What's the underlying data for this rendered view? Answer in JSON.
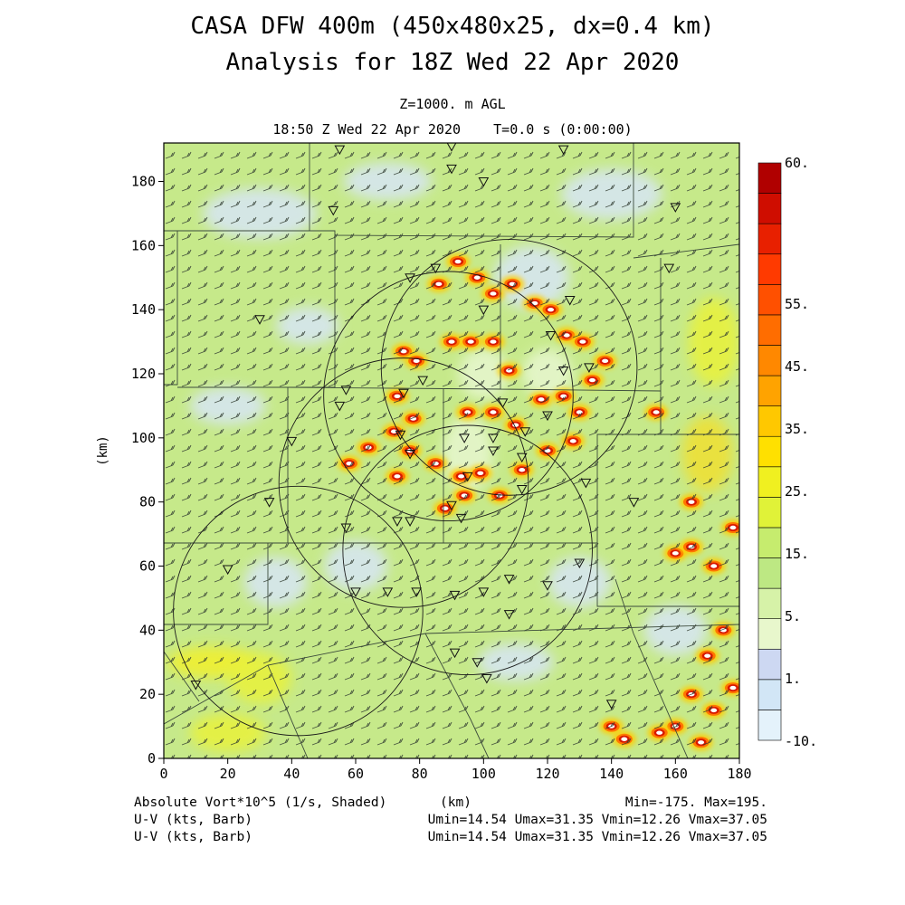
{
  "header": {
    "title_line1": "CASA DFW 400m (450x480x25, dx=0.4 km)",
    "title_line2": "Analysis for 18Z Wed 22 Apr 2020",
    "level": "Z=1000. m AGL",
    "time": "18:50 Z Wed 22 Apr 2020    T=0.0 s (0:00:00)"
  },
  "chart_data": {
    "type": "heatmap",
    "xlabel": "(km)",
    "ylabel": "(km)",
    "xlim": [
      0,
      180
    ],
    "ylim": [
      0,
      192
    ],
    "x_ticks": [
      0,
      20,
      40,
      60,
      80,
      100,
      120,
      140,
      160,
      180
    ],
    "y_ticks": [
      0,
      20,
      40,
      60,
      80,
      100,
      120,
      140,
      160,
      180
    ],
    "field": "Absolute Vort*10^5 (1/s, Shaded)",
    "min": -175,
    "max": 195,
    "colorbar": {
      "levels": [
        -10,
        1,
        5,
        15,
        25,
        35,
        45,
        55,
        60
      ],
      "labels": [
        "-10.",
        "1.",
        "5.",
        "15.",
        "25.",
        "35.",
        "45.",
        "55.",
        "60."
      ],
      "colors": [
        "#e4f2fb",
        "#d2e6f6",
        "#cdd8f2",
        "#e8f7cc",
        "#d6f2a8",
        "#bde883",
        "#c6ec6e",
        "#e0f238",
        "#f0f020",
        "#ffe000",
        "#ffc800",
        "#ffa300",
        "#ff8800",
        "#ff6d00",
        "#ff5000",
        "#ff3a00",
        "#e82000",
        "#cf0d00",
        "#b00000"
      ]
    },
    "radar_rings": [
      {
        "center": [
          89,
          113
        ],
        "radius_km": 39
      },
      {
        "center": [
          108,
          122
        ],
        "radius_km": 40
      },
      {
        "center": [
          75,
          86
        ],
        "radius_km": 39
      },
      {
        "center": [
          42,
          46
        ],
        "radius_km": 39
      },
      {
        "center": [
          95,
          65
        ],
        "radius_km": 39
      }
    ],
    "stations": [
      [
        55,
        190
      ],
      [
        90,
        191
      ],
      [
        125,
        190
      ],
      [
        90,
        184
      ],
      [
        100,
        180
      ],
      [
        53,
        171
      ],
      [
        77,
        150
      ],
      [
        30,
        137
      ],
      [
        85,
        153
      ],
      [
        100,
        140
      ],
      [
        121,
        132
      ],
      [
        127,
        143
      ],
      [
        125,
        121
      ],
      [
        133,
        122
      ],
      [
        81,
        118
      ],
      [
        75,
        114
      ],
      [
        74,
        101
      ],
      [
        77,
        95
      ],
      [
        57,
        115
      ],
      [
        55,
        110
      ],
      [
        40,
        99
      ],
      [
        94,
        100
      ],
      [
        103,
        100
      ],
      [
        106,
        111
      ],
      [
        103,
        96
      ],
      [
        112,
        94
      ],
      [
        113,
        102
      ],
      [
        120,
        107
      ],
      [
        95,
        88
      ],
      [
        112,
        84
      ],
      [
        132,
        86
      ],
      [
        90,
        79
      ],
      [
        93,
        75
      ],
      [
        77,
        74
      ],
      [
        73,
        74
      ],
      [
        57,
        72
      ],
      [
        33,
        80
      ],
      [
        20,
        59
      ],
      [
        60,
        52
      ],
      [
        70,
        52
      ],
      [
        79,
        52
      ],
      [
        91,
        51
      ],
      [
        100,
        52
      ],
      [
        108,
        56
      ],
      [
        120,
        54
      ],
      [
        130,
        61
      ],
      [
        147,
        80
      ],
      [
        91,
        33
      ],
      [
        101,
        25
      ],
      [
        140,
        17
      ],
      [
        10,
        23
      ],
      [
        98,
        30
      ],
      [
        108,
        45
      ],
      [
        158,
        153
      ],
      [
        160,
        172
      ]
    ],
    "vorticity_maxima": [
      [
        86,
        148
      ],
      [
        92,
        155
      ],
      [
        98,
        150
      ],
      [
        103,
        145
      ],
      [
        109,
        148
      ],
      [
        116,
        142
      ],
      [
        121,
        140
      ],
      [
        126,
        132
      ],
      [
        131,
        130
      ],
      [
        138,
        124
      ],
      [
        134,
        118
      ],
      [
        154,
        108
      ],
      [
        75,
        127
      ],
      [
        79,
        124
      ],
      [
        73,
        113
      ],
      [
        78,
        106
      ],
      [
        72,
        102
      ],
      [
        64,
        97
      ],
      [
        77,
        96
      ],
      [
        85,
        92
      ],
      [
        93,
        88
      ],
      [
        99,
        89
      ],
      [
        105,
        82
      ],
      [
        112,
        90
      ],
      [
        120,
        96
      ],
      [
        128,
        99
      ],
      [
        130,
        108
      ],
      [
        125,
        113
      ],
      [
        118,
        112
      ],
      [
        95,
        108
      ],
      [
        103,
        108
      ],
      [
        110,
        104
      ],
      [
        88,
        78
      ],
      [
        94,
        82
      ],
      [
        73,
        88
      ],
      [
        58,
        92
      ],
      [
        90,
        130
      ],
      [
        96,
        130
      ],
      [
        103,
        130
      ],
      [
        108,
        121
      ],
      [
        160,
        64
      ],
      [
        165,
        66
      ],
      [
        172,
        60
      ],
      [
        178,
        72
      ],
      [
        165,
        80
      ],
      [
        175,
        40
      ],
      [
        170,
        32
      ],
      [
        178,
        22
      ],
      [
        165,
        20
      ],
      [
        172,
        15
      ],
      [
        160,
        10
      ],
      [
        155,
        8
      ],
      [
        144,
        6
      ],
      [
        168,
        5
      ],
      [
        140,
        10
      ]
    ],
    "footer": {
      "field_label": "Absolute Vort*10^5 (1/s, Shaded)",
      "wind1_label": "U-V (kts, Barb)",
      "wind2_label": "U-V (kts, Barb)",
      "xunit": "(km)",
      "minmax": "Min=-175. Max=195.",
      "wind1_stats": "Umin=14.54 Umax=31.35 Vmin=12.26 Vmax=37.05",
      "wind2_stats": "Umin=14.54 Umax=31.35 Vmin=12.26 Vmax=37.05"
    }
  }
}
